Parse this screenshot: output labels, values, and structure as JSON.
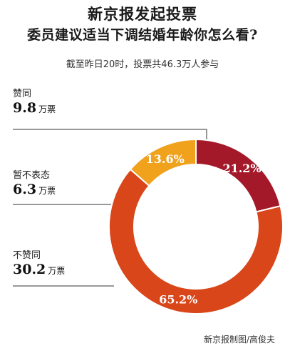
{
  "header": {
    "title_line1": "新京报发起投票",
    "title_line2": "委员建议适当下调结婚年龄你怎么看?",
    "subtitle": "截至昨日20时，投票共46.3万人参与"
  },
  "labels": {
    "agree": {
      "name": "赞同",
      "value": "9.8",
      "unit": "万票"
    },
    "neutral": {
      "name": "暂不表态",
      "value": "6.3",
      "unit": "万票"
    },
    "disagree": {
      "name": "不赞同",
      "value": "30.2",
      "unit": "万票"
    }
  },
  "credit": "新京报制图/高俊夫",
  "chart_data": {
    "type": "pie",
    "donut": true,
    "slices": [
      {
        "label": "赞同",
        "percent": 21.2,
        "percent_label": "21.2%",
        "votes": 9.8,
        "color": "#a4192a"
      },
      {
        "label": "不赞同",
        "percent": 65.2,
        "percent_label": "65.2%",
        "votes": 30.2,
        "color": "#d8461a"
      },
      {
        "label": "暂不表态",
        "percent": 13.6,
        "percent_label": "13.6%",
        "votes": 6.3,
        "color": "#f0a21d"
      }
    ],
    "start_angle_deg": 0,
    "direction": "clockwise",
    "vote_unit": "万票"
  }
}
